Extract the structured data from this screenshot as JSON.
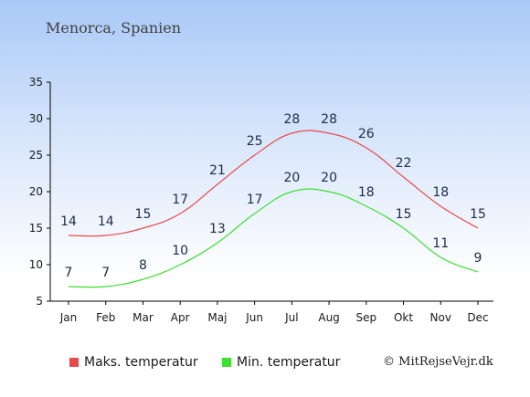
{
  "location": "Menorca, Spanien",
  "copyright": "© MitRejseVejr.dk",
  "chart_data": {
    "type": "line",
    "categories": [
      "Jan",
      "Feb",
      "Mar",
      "Apr",
      "Maj",
      "Jun",
      "Jul",
      "Aug",
      "Sep",
      "Okt",
      "Nov",
      "Dec"
    ],
    "series": [
      {
        "name": "Maks. temperatur",
        "color": "#e8494b",
        "values": [
          14,
          14,
          15,
          17,
          21,
          25,
          28,
          28,
          26,
          22,
          18,
          15
        ]
      },
      {
        "name": "Min. temperatur",
        "color": "#3be030",
        "values": [
          7,
          7,
          8,
          10,
          13,
          17,
          20,
          20,
          18,
          15,
          11,
          9
        ]
      }
    ],
    "ylim": [
      5,
      35
    ],
    "yticks": [
      5,
      10,
      15,
      20,
      25,
      30,
      35
    ],
    "grid": false,
    "legend": "bottom"
  }
}
